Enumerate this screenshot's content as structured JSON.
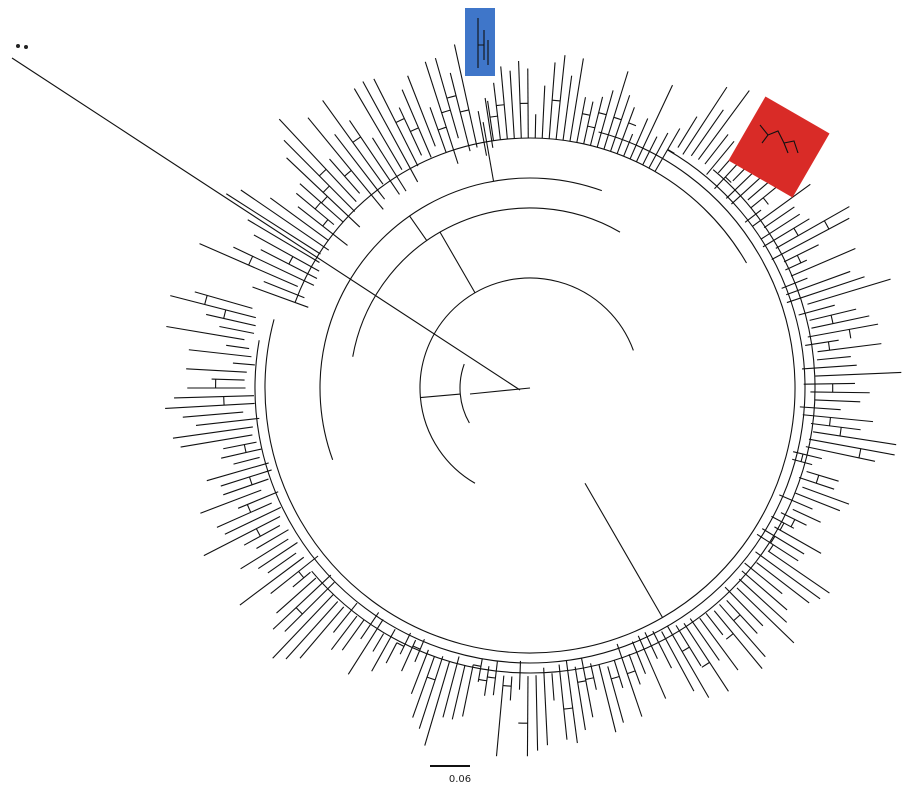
{
  "scale_bar": {
    "label": "0.06"
  }
}
